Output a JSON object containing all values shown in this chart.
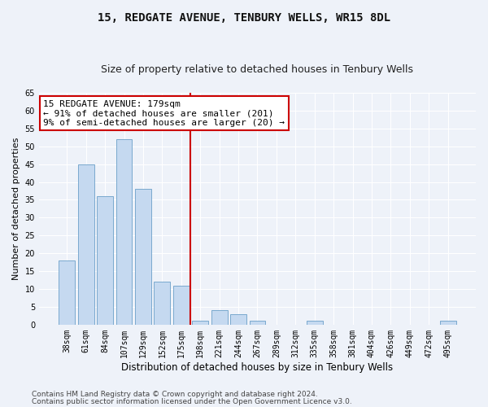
{
  "title": "15, REDGATE AVENUE, TENBURY WELLS, WR15 8DL",
  "subtitle": "Size of property relative to detached houses in Tenbury Wells",
  "xlabel": "Distribution of detached houses by size in Tenbury Wells",
  "ylabel": "Number of detached properties",
  "categories": [
    "38sqm",
    "61sqm",
    "84sqm",
    "107sqm",
    "129sqm",
    "152sqm",
    "175sqm",
    "198sqm",
    "221sqm",
    "244sqm",
    "267sqm",
    "289sqm",
    "312sqm",
    "335sqm",
    "358sqm",
    "381sqm",
    "404sqm",
    "426sqm",
    "449sqm",
    "472sqm",
    "495sqm"
  ],
  "values": [
    18,
    45,
    36,
    52,
    38,
    12,
    11,
    1,
    4,
    3,
    1,
    0,
    0,
    1,
    0,
    0,
    0,
    0,
    0,
    0,
    1
  ],
  "bar_color": "#c5d9f0",
  "bar_edge_color": "#6b9fc8",
  "vline_index": 6,
  "vline_color": "#cc0000",
  "annotation_text": "15 REDGATE AVENUE: 179sqm\n← 91% of detached houses are smaller (201)\n9% of semi-detached houses are larger (20) →",
  "annotation_box_color": "#ffffff",
  "annotation_box_edge": "#cc0000",
  "ylim": [
    0,
    65
  ],
  "yticks": [
    0,
    5,
    10,
    15,
    20,
    25,
    30,
    35,
    40,
    45,
    50,
    55,
    60,
    65
  ],
  "footer_line1": "Contains HM Land Registry data © Crown copyright and database right 2024.",
  "footer_line2": "Contains public sector information licensed under the Open Government Licence v3.0.",
  "bg_color": "#eef2f9",
  "plot_bg_color": "#eef2f9",
  "title_fontsize": 10,
  "subtitle_fontsize": 9,
  "xlabel_fontsize": 8.5,
  "ylabel_fontsize": 8,
  "tick_fontsize": 7,
  "annotation_fontsize": 8,
  "footer_fontsize": 6.5
}
